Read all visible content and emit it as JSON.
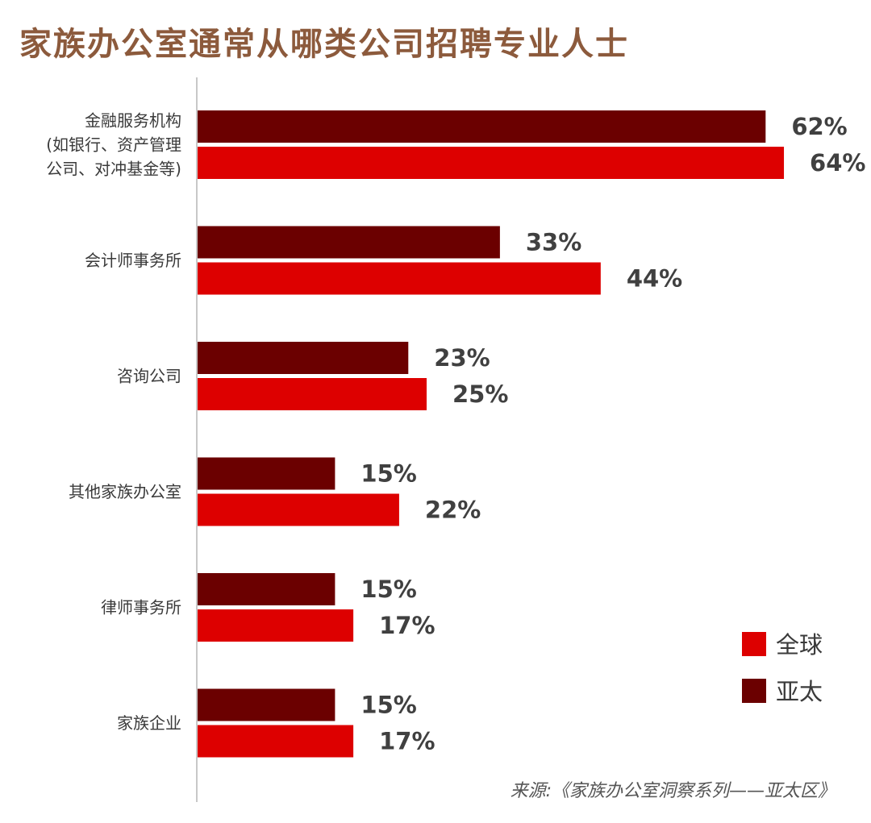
{
  "title": "家族办公室通常从哪类公司招聘专业人士",
  "source": "来源:《家族办公室洞察系列——亚太区》",
  "colors": {
    "global": "#dd0000",
    "apac": "#6b0000",
    "title": "#8c5a3c"
  },
  "chart_data": {
    "type": "bar",
    "orientation": "horizontal",
    "title": "家族办公室通常从哪类公司招聘专业人士",
    "categories": [
      [
        "金融服务机构",
        "(如银行、资产管理",
        "公司、对冲基金等)"
      ],
      [
        "会计师事务所"
      ],
      [
        "咨询公司"
      ],
      [
        "其他家族办公室"
      ],
      [
        "律师事务所"
      ],
      [
        "家族企业"
      ]
    ],
    "series": [
      {
        "name": "亚太",
        "key": "apac",
        "values": [
          62,
          33,
          23,
          15,
          15,
          15
        ],
        "labels": [
          "62%",
          "33%",
          "23%",
          "15%",
          "15%",
          "15%"
        ]
      },
      {
        "name": "全球",
        "key": "global",
        "values": [
          64,
          44,
          25,
          22,
          17,
          17
        ],
        "labels": [
          "64%",
          "44%",
          "25%",
          "22%",
          "17%",
          "17%"
        ]
      }
    ],
    "unit": "%",
    "xlim": [
      0,
      64
    ],
    "legend": {
      "position": "bottom-right",
      "items": [
        "全球",
        "亚太"
      ]
    },
    "grid": false
  }
}
